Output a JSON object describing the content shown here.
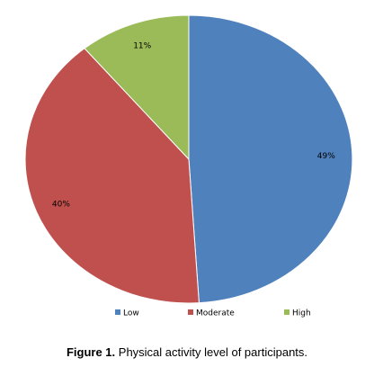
{
  "figure": {
    "caption_number": "Figure 1.",
    "caption_text": " Physical activity level of participants."
  },
  "chart_data": {
    "type": "pie",
    "slices": [
      {
        "label": "Low",
        "value": 49,
        "display": "49%",
        "color": "#4f81bd"
      },
      {
        "label": "Moderate",
        "value": 40,
        "display": "40%",
        "color": "#c0504d"
      },
      {
        "label": "High",
        "value": 11,
        "display": "11%",
        "color": "#9bbb59"
      }
    ],
    "start": "12 o'clock",
    "direction": "clockwise",
    "legend_position": "bottom"
  }
}
